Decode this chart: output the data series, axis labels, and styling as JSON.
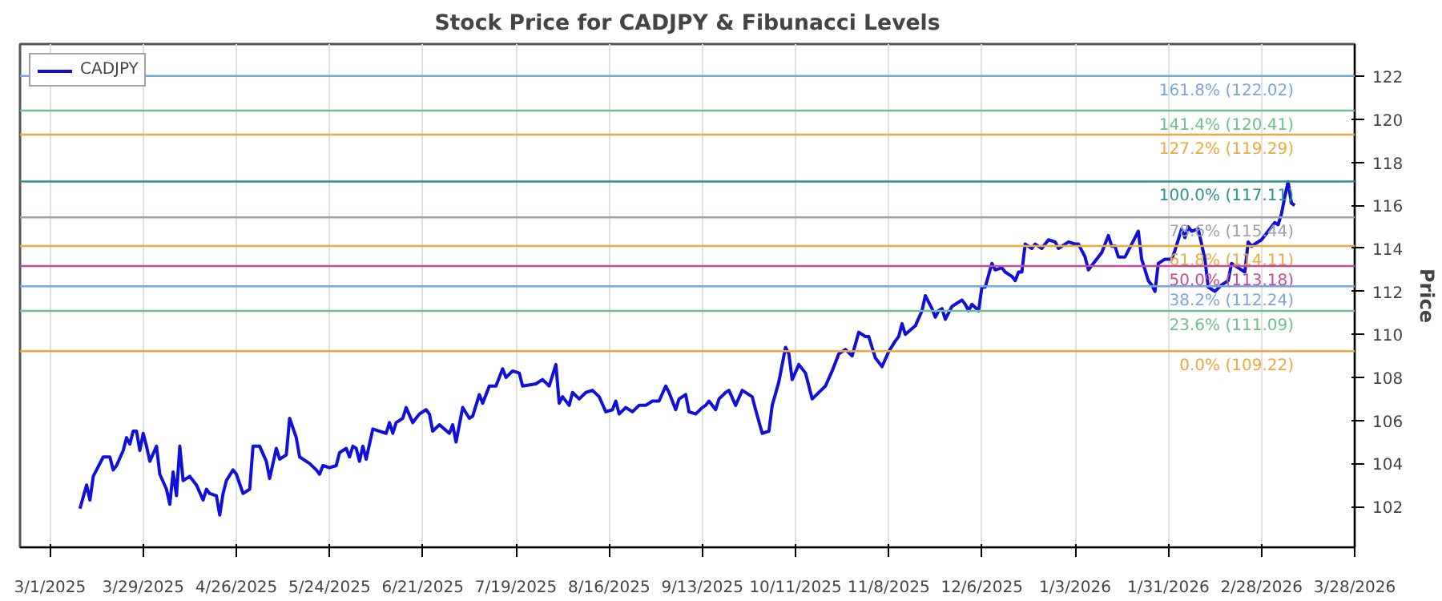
{
  "chart_data": {
    "type": "line",
    "title": "Stock Price for CADJPY & Fibunacci Levels",
    "ylabel": "Price",
    "x": [
      "2025-03-10",
      "2025-03-12",
      "2025-03-13",
      "2025-03-14",
      "2025-03-17",
      "2025-03-19",
      "2025-03-20",
      "2025-03-21",
      "2025-03-23",
      "2025-03-24",
      "2025-03-25",
      "2025-03-26",
      "2025-03-27",
      "2025-03-28",
      "2025-03-29",
      "2025-03-30",
      "2025-03-31",
      "2025-04-02",
      "2025-04-03",
      "2025-04-05",
      "2025-04-06",
      "2025-04-07",
      "2025-04-08",
      "2025-04-09",
      "2025-04-10",
      "2025-04-12",
      "2025-04-14",
      "2025-04-16",
      "2025-04-17",
      "2025-04-18",
      "2025-04-20",
      "2025-04-21",
      "2025-04-22",
      "2025-04-23",
      "2025-04-25",
      "2025-04-26",
      "2025-04-28",
      "2025-04-30",
      "2025-05-01",
      "2025-05-03",
      "2025-05-05",
      "2025-05-06",
      "2025-05-08",
      "2025-05-09",
      "2025-05-11",
      "2025-05-12",
      "2025-05-14",
      "2025-05-15",
      "2025-05-18",
      "2025-05-20",
      "2025-05-21",
      "2025-05-22",
      "2025-05-24",
      "2025-05-26",
      "2025-05-27",
      "2025-05-29",
      "2025-05-30",
      "2025-05-31",
      "2025-06-01",
      "2025-06-02",
      "2025-06-03",
      "2025-06-04",
      "2025-06-06",
      "2025-06-08",
      "2025-06-10",
      "2025-06-11",
      "2025-06-12",
      "2025-06-13",
      "2025-06-15",
      "2025-06-16",
      "2025-06-18",
      "2025-06-20",
      "2025-06-22",
      "2025-06-23",
      "2025-06-24",
      "2025-06-26",
      "2025-06-29",
      "2025-06-30",
      "2025-07-01",
      "2025-07-03",
      "2025-07-05",
      "2025-07-06",
      "2025-07-08",
      "2025-07-09",
      "2025-07-11",
      "2025-07-13",
      "2025-07-15",
      "2025-07-16",
      "2025-07-18",
      "2025-07-20",
      "2025-07-21",
      "2025-07-25",
      "2025-07-27",
      "2025-07-29",
      "2025-07-31",
      "2025-08-01",
      "2025-08-02",
      "2025-08-04",
      "2025-08-05",
      "2025-08-07",
      "2025-08-09",
      "2025-08-11",
      "2025-08-13",
      "2025-08-15",
      "2025-08-17",
      "2025-08-18",
      "2025-08-19",
      "2025-08-21",
      "2025-08-23",
      "2025-08-25",
      "2025-08-27",
      "2025-08-29",
      "2025-08-31",
      "2025-09-02",
      "2025-09-03",
      "2025-09-05",
      "2025-09-06",
      "2025-09-08",
      "2025-09-09",
      "2025-09-11",
      "2025-09-13",
      "2025-09-14",
      "2025-09-15",
      "2025-09-17",
      "2025-09-18",
      "2025-09-20",
      "2025-09-21",
      "2025-09-23",
      "2025-09-25",
      "2025-09-28",
      "2025-09-29",
      "2025-10-01",
      "2025-10-03",
      "2025-10-04",
      "2025-10-06",
      "2025-10-08",
      "2025-10-09",
      "2025-10-10",
      "2025-10-12",
      "2025-10-14",
      "2025-10-16",
      "2025-10-18",
      "2025-10-20",
      "2025-10-22",
      "2025-10-24",
      "2025-10-26",
      "2025-10-28",
      "2025-10-30",
      "2025-11-01",
      "2025-11-02",
      "2025-11-04",
      "2025-11-06",
      "2025-11-08",
      "2025-11-10",
      "2025-11-11",
      "2025-11-12",
      "2025-11-13",
      "2025-11-16",
      "2025-11-18",
      "2025-11-19",
      "2025-11-21",
      "2025-11-22",
      "2025-11-23",
      "2025-11-24",
      "2025-11-25",
      "2025-11-27",
      "2025-11-28",
      "2025-11-30",
      "2025-12-01",
      "2025-12-02",
      "2025-12-03",
      "2025-12-05",
      "2025-12-06",
      "2025-12-07",
      "2025-12-09",
      "2025-12-10",
      "2025-12-12",
      "2025-12-13",
      "2025-12-15",
      "2025-12-16",
      "2025-12-17",
      "2025-12-18",
      "2025-12-19",
      "2025-12-21",
      "2025-12-22",
      "2025-12-24",
      "2025-12-26",
      "2025-12-28",
      "2025-12-29",
      "2025-12-31",
      "2026-01-01",
      "2026-01-03",
      "2026-01-04",
      "2026-01-06",
      "2026-01-07",
      "2026-01-09",
      "2026-01-11",
      "2026-01-13",
      "2026-01-14",
      "2026-01-15",
      "2026-01-16",
      "2026-01-18",
      "2026-01-20",
      "2026-01-22",
      "2026-01-23",
      "2026-01-25",
      "2026-01-26",
      "2026-01-27",
      "2026-01-28",
      "2026-01-30",
      "2026-02-01",
      "2026-02-02",
      "2026-02-04",
      "2026-02-05",
      "2026-02-06",
      "2026-02-07",
      "2026-02-09",
      "2026-02-11",
      "2026-02-12",
      "2026-02-14",
      "2026-02-16",
      "2026-02-18",
      "2026-02-19",
      "2026-02-21",
      "2026-02-23",
      "2026-02-24",
      "2026-02-25",
      "2026-02-28",
      "2026-03-02",
      "2026-03-04",
      "2026-03-05",
      "2026-03-06",
      "2026-03-07",
      "2026-03-08",
      "2026-03-09",
      "2026-03-10"
    ],
    "series": [
      {
        "name": "CADJPY",
        "color": "#1010d8",
        "values": [
          101.9,
          103.0,
          102.3,
          103.4,
          104.3,
          104.3,
          103.7,
          103.9,
          104.6,
          105.2,
          104.9,
          105.5,
          105.5,
          104.6,
          105.4,
          104.8,
          104.1,
          104.8,
          103.5,
          102.8,
          102.1,
          103.6,
          102.5,
          104.8,
          103.2,
          103.4,
          103.0,
          102.3,
          102.8,
          102.6,
          102.5,
          101.6,
          102.6,
          103.2,
          103.7,
          103.5,
          102.6,
          102.8,
          104.8,
          104.8,
          104.1,
          103.3,
          104.7,
          104.2,
          104.4,
          106.1,
          105.2,
          104.3,
          104.0,
          103.7,
          103.5,
          103.9,
          103.8,
          103.9,
          104.5,
          104.7,
          104.3,
          104.8,
          104.7,
          104.1,
          104.8,
          104.2,
          105.6,
          105.5,
          105.4,
          105.9,
          105.4,
          105.9,
          106.1,
          106.6,
          105.9,
          106.3,
          106.5,
          106.3,
          105.5,
          105.8,
          105.4,
          105.8,
          105.0,
          106.6,
          106.1,
          106.2,
          107.2,
          106.8,
          107.6,
          107.6,
          108.4,
          108.0,
          108.3,
          108.2,
          107.6,
          107.7,
          107.9,
          107.6,
          108.6,
          106.8,
          107.1,
          106.7,
          107.3,
          107.0,
          107.3,
          107.4,
          107.1,
          106.4,
          106.5,
          106.9,
          106.3,
          106.6,
          106.4,
          106.7,
          106.7,
          106.9,
          106.9,
          107.6,
          107.3,
          106.5,
          107.0,
          107.2,
          106.4,
          106.3,
          106.6,
          106.7,
          106.9,
          106.5,
          107.0,
          107.3,
          107.4,
          106.7,
          107.4,
          107.1,
          106.5,
          105.4,
          105.5,
          106.7,
          107.8,
          109.4,
          109.1,
          107.9,
          108.6,
          108.2,
          107.0,
          107.3,
          107.6,
          108.3,
          109.1,
          109.3,
          109.0,
          110.1,
          109.9,
          109.9,
          108.9,
          108.5,
          109.2,
          109.7,
          109.9,
          110.5,
          110.0,
          110.4,
          111.1,
          111.8,
          111.2,
          110.8,
          111.1,
          111.2,
          110.7,
          111.3,
          111.4,
          111.6,
          111.4,
          111.1,
          111.4,
          111.1,
          112.2,
          112.2,
          113.3,
          113.0,
          113.1,
          112.9,
          112.7,
          112.5,
          112.9,
          112.9,
          114.2,
          114.0,
          114.2,
          114.0,
          114.4,
          114.3,
          114.0,
          114.2,
          114.3,
          114.2,
          114.2,
          113.6,
          113.0,
          113.4,
          113.8,
          114.6,
          114.1,
          114.1,
          113.6,
          113.6,
          114.2,
          114.8,
          113.5,
          112.5,
          112.3,
          112.0,
          113.3,
          113.5,
          113.5,
          113.9,
          114.9,
          114.5,
          115.0,
          114.8,
          114.9,
          113.5,
          112.2,
          112.0,
          112.3,
          112.5,
          113.3,
          113.1,
          112.9,
          114.3,
          114.1,
          114.4,
          114.8,
          115.2,
          115.1,
          115.6,
          116.4,
          117.1,
          116.1,
          116.0
        ]
      }
    ],
    "xlim": [
      "2025-02-20",
      "2026-03-28"
    ],
    "xticks": [
      {
        "value": "2025-03-01",
        "label": "3/1/2025"
      },
      {
        "value": "2025-03-29",
        "label": "3/29/2025"
      },
      {
        "value": "2025-04-26",
        "label": "4/26/2025"
      },
      {
        "value": "2025-05-24",
        "label": "5/24/2025"
      },
      {
        "value": "2025-06-21",
        "label": "6/21/2025"
      },
      {
        "value": "2025-07-19",
        "label": "7/19/2025"
      },
      {
        "value": "2025-08-16",
        "label": "8/16/2025"
      },
      {
        "value": "2025-09-13",
        "label": "9/13/2025"
      },
      {
        "value": "2025-10-11",
        "label": "10/11/2025"
      },
      {
        "value": "2025-11-08",
        "label": "11/8/2025"
      },
      {
        "value": "2025-12-06",
        "label": "12/6/2025"
      },
      {
        "value": "2026-01-03",
        "label": "1/3/2026"
      },
      {
        "value": "2026-01-31",
        "label": "1/31/2026"
      },
      {
        "value": "2026-02-28",
        "label": "2/28/2026"
      },
      {
        "value": "2026-03-28",
        "label": "3/28/2026"
      }
    ],
    "ylim": [
      100.1,
      123.5
    ],
    "yticks": [
      102,
      104,
      106,
      108,
      110,
      112,
      114,
      116,
      118,
      120,
      122
    ],
    "ref_lines": [
      {
        "axis": "y",
        "value": 122.02,
        "label": "161.8% (122.02)",
        "color": "#7aa6e0"
      },
      {
        "axis": "y",
        "value": 120.41,
        "label": "141.4% (120.41)",
        "color": "#6cc08c"
      },
      {
        "axis": "y",
        "value": 119.29,
        "label": "127.2% (119.29)",
        "color": "#f0a73c"
      },
      {
        "axis": "y",
        "value": 117.11,
        "label": "100.0% (117.11)",
        "color": "#2a9490"
      },
      {
        "axis": "y",
        "value": 115.44,
        "label": "78.6% (115.44)",
        "color": "#a0a0b0"
      },
      {
        "axis": "y",
        "value": 114.11,
        "label": "61.8% (114.11)",
        "color": "#f0a73c"
      },
      {
        "axis": "y",
        "value": 113.18,
        "label": "50.0% (113.18)",
        "color": "#c8489c"
      },
      {
        "axis": "y",
        "value": 112.24,
        "label": "38.2% (112.24)",
        "color": "#7aa6e0"
      },
      {
        "axis": "y",
        "value": 111.09,
        "label": "23.6% (111.09)",
        "color": "#6cc08c"
      },
      {
        "axis": "y",
        "value": 109.22,
        "label": "0.0% (109.22)",
        "color": "#f0a73c"
      }
    ],
    "grid": "x",
    "legend": "top left",
    "line_style": "solid",
    "marker": "none"
  }
}
